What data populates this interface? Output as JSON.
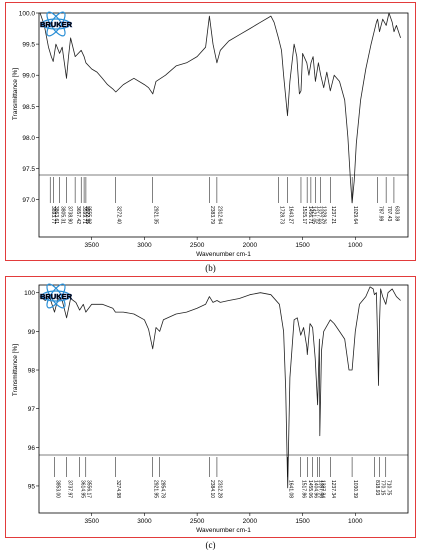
{
  "panels": [
    {
      "caption": "(b)",
      "logo_text": "BRUKER",
      "chart_data": {
        "type": "line",
        "xlabel": "Wavenumber cm-1",
        "ylabel": "Transmittance [%]",
        "xlim": [
          4000,
          500
        ],
        "ylim": [
          96.4,
          100.0
        ],
        "x_ticks": [
          3500,
          3000,
          2500,
          2000,
          1500,
          1000
        ],
        "y_ticks": [
          97.0,
          97.5,
          98.0,
          98.5,
          99.0,
          99.5,
          100.0
        ],
        "y_tick_labels": [
          "97.0",
          "97.5",
          "98.0",
          "98.5",
          "99.0",
          "99.5",
          "100.0"
        ],
        "x": [
          3990,
          3950,
          3910,
          3883,
          3865,
          3840,
          3805,
          3780,
          3739,
          3720,
          3700,
          3657,
          3600,
          3572,
          3555,
          3500,
          3450,
          3400,
          3350,
          3300,
          3272,
          3200,
          3100,
          3000,
          2960,
          2921,
          2890,
          2800,
          2700,
          2600,
          2500,
          2420,
          2384,
          2350,
          2313,
          2280,
          2200,
          2100,
          2000,
          1900,
          1800,
          1770,
          1729,
          1700,
          1680,
          1643,
          1620,
          1580,
          1555,
          1530,
          1515,
          1500,
          1460,
          1440,
          1420,
          1400,
          1378,
          1350,
          1328,
          1300,
          1270,
          1237,
          1200,
          1150,
          1100,
          1070,
          1045,
          1030,
          1010,
          990,
          950,
          900,
          850,
          800,
          788,
          770,
          740,
          707,
          680,
          650,
          633,
          610,
          570
        ],
        "y": [
          100.0,
          99.8,
          99.45,
          99.3,
          99.22,
          99.5,
          99.35,
          99.45,
          98.95,
          99.3,
          99.6,
          99.3,
          99.4,
          99.3,
          99.2,
          99.1,
          99.05,
          98.95,
          98.85,
          98.78,
          98.73,
          98.85,
          98.95,
          98.85,
          98.8,
          98.7,
          98.9,
          99.0,
          99.15,
          99.2,
          99.3,
          99.45,
          99.95,
          99.5,
          99.2,
          99.4,
          99.55,
          99.65,
          99.75,
          99.85,
          99.95,
          99.85,
          99.6,
          99.4,
          99.0,
          98.35,
          98.9,
          99.5,
          99.3,
          98.7,
          98.75,
          99.35,
          99.2,
          99.0,
          99.2,
          99.3,
          98.9,
          99.2,
          99.0,
          98.8,
          99.05,
          98.75,
          99.0,
          98.9,
          98.6,
          98.0,
          97.3,
          96.95,
          97.3,
          97.9,
          98.6,
          99.1,
          99.5,
          99.85,
          99.9,
          99.7,
          99.9,
          99.8,
          100.0,
          99.85,
          99.7,
          99.8,
          99.6
        ],
        "peak_labels": [
          "3893.77",
          "3863.61",
          "3805.31",
          "3738.90",
          "3657.42",
          "3599.71",
          "3572.35",
          "3555.02",
          "3272.40",
          "2921.35",
          "2383.79",
          "2312.64",
          "1728.73",
          "1643.27",
          "1515.17",
          "1456.71",
          "1421.05",
          "1377.69",
          "1328.26",
          "1237.21",
          "1029.64",
          "787.99",
          "707.43",
          "633.39"
        ],
        "peak_positions": [
          3893.77,
          3863.61,
          3805.31,
          3738.9,
          3657.42,
          3599.71,
          3572.35,
          3555.02,
          3272.4,
          2921.35,
          2383.79,
          2312.64,
          1728.73,
          1643.27,
          1515.17,
          1456.71,
          1421.05,
          1377.69,
          1328.26,
          1237.21,
          1029.64,
          787.99,
          707.43,
          633.39
        ]
      }
    },
    {
      "caption": "(c)",
      "logo_text": "BRUKER",
      "chart_data": {
        "type": "line",
        "xlabel": "Wavenumber cm-1",
        "ylabel": "Transmittance [%]",
        "xlim": [
          4000,
          500
        ],
        "ylim": [
          94.3,
          100.2
        ],
        "x_ticks": [
          3500,
          3000,
          2500,
          2000,
          1500,
          1000
        ],
        "y_ticks": [
          95,
          96,
          97,
          98,
          99,
          100
        ],
        "y_tick_labels": [
          "95",
          "96",
          "97",
          "98",
          "99",
          "100"
        ],
        "x": [
          3990,
          3940,
          3900,
          3853,
          3820,
          3780,
          3738,
          3700,
          3650,
          3615,
          3580,
          3556,
          3500,
          3400,
          3300,
          3275,
          3200,
          3100,
          3000,
          2960,
          2922,
          2890,
          2855,
          2820,
          2700,
          2600,
          2500,
          2420,
          2384,
          2350,
          2312,
          2280,
          2200,
          2100,
          2000,
          1900,
          1800,
          1720,
          1680,
          1660,
          1641,
          1620,
          1580,
          1550,
          1518,
          1490,
          1460,
          1455,
          1430,
          1405,
          1380,
          1357,
          1340,
          1337,
          1320,
          1300,
          1237,
          1200,
          1150,
          1100,
          1060,
          1030,
          1000,
          960,
          900,
          860,
          830,
          819,
          800,
          790,
          780,
          770,
          760,
          740,
          711,
          690,
          650,
          610,
          570
        ],
        "y": [
          99.9,
          99.8,
          99.9,
          99.5,
          99.85,
          99.8,
          99.35,
          99.85,
          99.75,
          99.55,
          99.7,
          99.5,
          99.7,
          99.7,
          99.6,
          99.5,
          99.5,
          99.45,
          99.3,
          99.05,
          98.55,
          99.1,
          99.0,
          99.3,
          99.45,
          99.5,
          99.6,
          99.7,
          99.9,
          99.75,
          99.8,
          99.75,
          99.8,
          99.85,
          99.95,
          100.0,
          99.95,
          99.7,
          99.0,
          97.5,
          94.95,
          97.8,
          99.3,
          99.35,
          98.9,
          99.1,
          98.6,
          98.4,
          99.2,
          99.1,
          98.3,
          97.1,
          98.8,
          96.3,
          98.5,
          99.0,
          99.3,
          99.2,
          99.0,
          98.8,
          98.0,
          98.0,
          99.0,
          99.7,
          99.9,
          100.15,
          100.1,
          99.95,
          100.0,
          99.0,
          97.6,
          99.2,
          100.1,
          99.9,
          99.7,
          100.0,
          100.1,
          99.9,
          99.8
        ],
        "peak_labels": [
          "3853.00",
          "3737.97",
          "3614.95",
          "3556.17",
          "3274.98",
          "2921.95",
          "2854.78",
          "2384.10",
          "2312.28",
          "1641.08",
          "1517.86",
          "1455.06",
          "1404.96",
          "1357.56",
          "1337.34",
          "1237.34",
          "1030.39",
          "818.93",
          "770.15",
          "710.75"
        ],
        "peak_positions": [
          3853.0,
          3737.97,
          3614.95,
          3556.17,
          3274.98,
          2921.95,
          2854.78,
          2384.1,
          2312.28,
          1641.08,
          1517.86,
          1455.06,
          1404.96,
          1357.56,
          1337.34,
          1237.34,
          1030.39,
          818.93,
          770.15,
          710.75
        ]
      }
    }
  ]
}
